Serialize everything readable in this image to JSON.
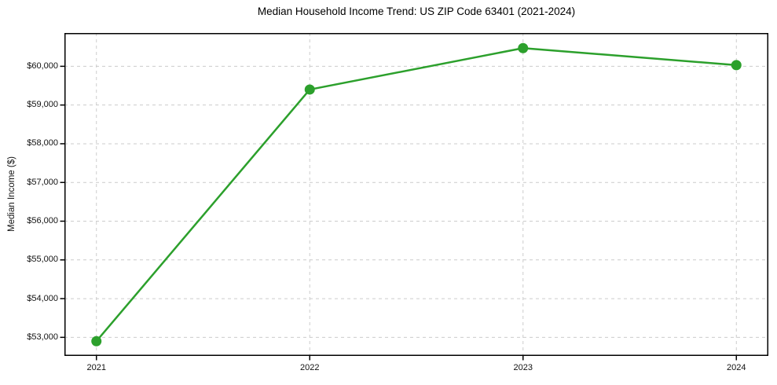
{
  "figure": {
    "background": "#ffffff"
  },
  "chart_data": {
    "type": "line",
    "title": "Median Household Income Trend: US ZIP Code 63401 (2021-2024)",
    "xlabel": "",
    "ylabel": "Median Income ($)",
    "x": [
      2021,
      2022,
      2023,
      2024
    ],
    "values": [
      52900,
      59400,
      60470,
      60030
    ],
    "xticks": [
      {
        "value": 2021,
        "label": "2021"
      },
      {
        "value": 2022,
        "label": "2022"
      },
      {
        "value": 2023,
        "label": "2023"
      },
      {
        "value": 2024,
        "label": "2024"
      }
    ],
    "yticks": [
      {
        "value": 53000,
        "label": "$53,000"
      },
      {
        "value": 54000,
        "label": "$54,000"
      },
      {
        "value": 55000,
        "label": "$55,000"
      },
      {
        "value": 56000,
        "label": "$56,000"
      },
      {
        "value": 57000,
        "label": "$57,000"
      },
      {
        "value": 58000,
        "label": "$58,000"
      },
      {
        "value": 59000,
        "label": "$59,000"
      },
      {
        "value": 60000,
        "label": "$60,000"
      }
    ],
    "xlim": [
      2020.85,
      2024.15
    ],
    "ylim": [
      52520,
      60860
    ],
    "grid": true,
    "grid_axes": "both",
    "legend": "none",
    "style": {
      "line_color": "#2ca02c",
      "marker_color": "#2ca02c",
      "marker": "circle",
      "line_width": 2.5,
      "marker_radius": 6.5,
      "grid_color": "#cccccc",
      "grid_dash": "4 4",
      "spine_color": "#000000",
      "tick_color": "#000000",
      "text_color": "#111111"
    }
  }
}
